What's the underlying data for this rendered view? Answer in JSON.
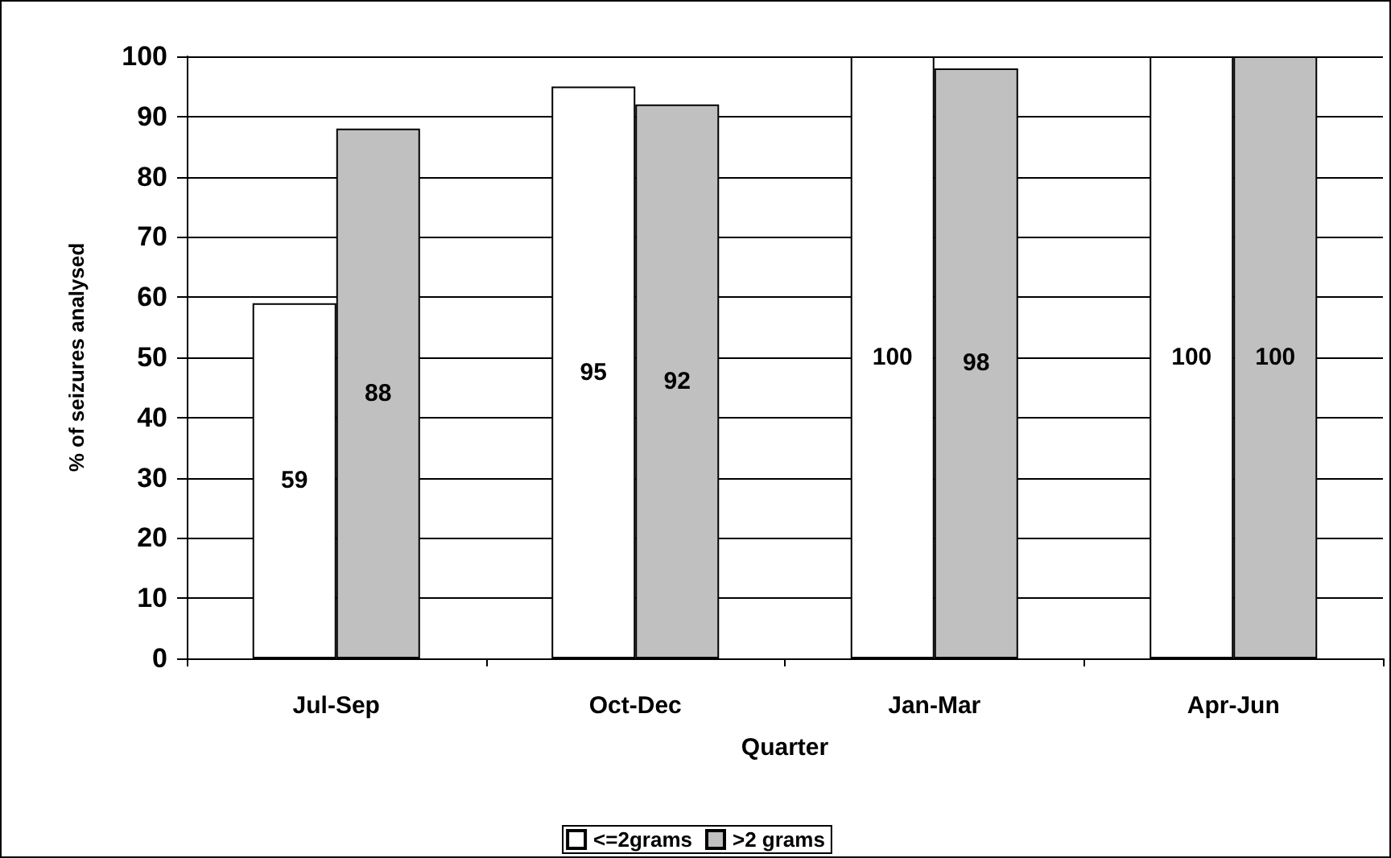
{
  "chart_data": {
    "type": "bar",
    "xlabel": "Quarter",
    "ylabel": "% of seizures analysed",
    "categories": [
      "Jul-Sep",
      "Oct-Dec",
      "Jan-Mar",
      "Apr-Jun"
    ],
    "series": [
      {
        "name": "<=2grams",
        "color": "#ffffff",
        "values": [
          59,
          95,
          100,
          100
        ]
      },
      {
        "name": ">2 grams",
        "color": "#c0c0c0",
        "values": [
          88,
          92,
          98,
          100
        ]
      }
    ],
    "ylim": [
      0,
      100
    ],
    "yticks": [
      0,
      10,
      20,
      30,
      40,
      50,
      60,
      70,
      80,
      90,
      100
    ],
    "grid": "y",
    "legend": "bottom",
    "data_labels": true
  }
}
